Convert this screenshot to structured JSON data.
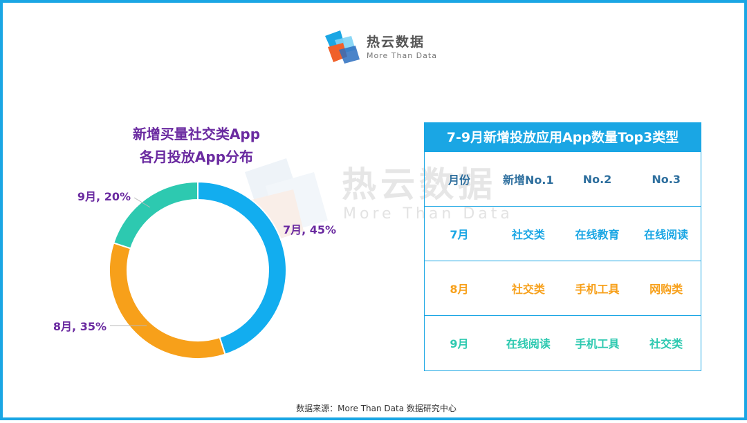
{
  "brand": {
    "name_cn": "热云数据",
    "name_en": "More Than Data"
  },
  "watermark": {
    "name_cn": "热云数据",
    "name_en": "More Than Data"
  },
  "chart_data": {
    "type": "pie",
    "title": "新增买量社交类App各月投放App分布",
    "title_lines": [
      "新增买量社交类App",
      "各月投放App分布"
    ],
    "categories": [
      "7月",
      "8月",
      "9月"
    ],
    "values": [
      45,
      35,
      20
    ],
    "labels": [
      "7月, 45%",
      "8月, 35%",
      "9月, 20%"
    ],
    "colors": [
      "#12adef",
      "#f7a01a",
      "#2dc9b0"
    ],
    "donut": true
  },
  "table": {
    "title": "7-9月新增投放应用App数量Top3类型",
    "headers": [
      "月份",
      "新增No.1",
      "No.2",
      "No.3"
    ],
    "rows": [
      [
        "7月",
        "社交类",
        "在线教育",
        "在线阅读"
      ],
      [
        "8月",
        "社交类",
        "手机工具",
        "网购类"
      ],
      [
        "9月",
        "在线阅读",
        "手机工具",
        "社交类"
      ]
    ],
    "row_colors": [
      "#1aa6e4",
      "#f7a01a",
      "#2dc9b0"
    ]
  },
  "footer": {
    "source": "数据来源：More Than Data 数据研究中心"
  }
}
